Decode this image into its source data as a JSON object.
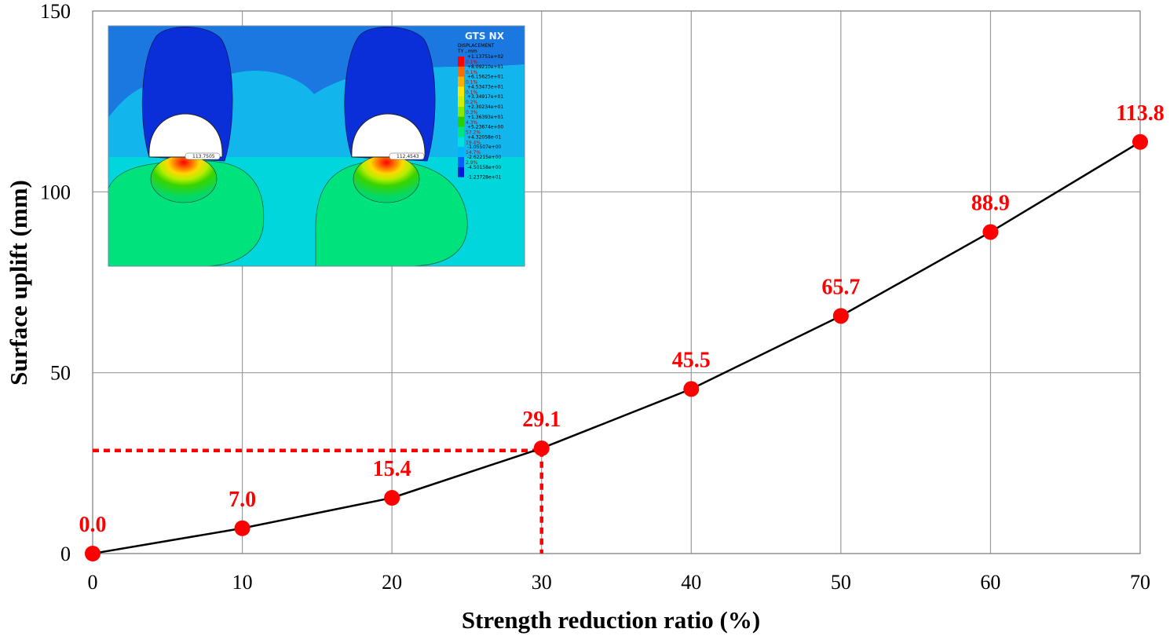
{
  "chart_data": {
    "type": "line",
    "title": "",
    "xlabel": "Strength reduction ratio (%)",
    "ylabel": "Surface  uplift (mm)",
    "x": [
      0,
      10,
      20,
      30,
      40,
      50,
      60,
      70
    ],
    "series": [
      {
        "name": "Surface uplift",
        "values": [
          0.0,
          7.0,
          15.4,
          29.1,
          45.5,
          65.7,
          88.9,
          113.8
        ]
      }
    ],
    "data_labels": [
      "0.0",
      "7.0",
      "15.4",
      "29.1",
      "45.5",
      "65.7",
      "88.9",
      "113.8"
    ],
    "xlim": [
      0,
      70
    ],
    "ylim": [
      0,
      150
    ],
    "xticks": [
      "0",
      "10",
      "20",
      "30",
      "40",
      "50",
      "60",
      "70"
    ],
    "yticks": [
      "0",
      "50",
      "100",
      "150"
    ],
    "grid": true,
    "reference_point": {
      "x": 30,
      "y": 28.5
    },
    "colors": {
      "line": "#000000",
      "marker": "#ff0000",
      "label": "#ff0000",
      "reference": "#ff0000",
      "grid": "#999999"
    }
  },
  "inset": {
    "brand": "GTS NX",
    "legend_title": "DISPLACEMENT",
    "legend_unit": "TY , mm",
    "legend_values": [
      "+1.13751e+02",
      "+8.09210e+01",
      "+6.15625e+01",
      "+4.53473e+01",
      "+3.34917e+01",
      "+2.30234e+01",
      "+1.36393e+01",
      "+5.23674e+00",
      "+4.32058e-01",
      "-1.05507e+00",
      "-2.62215e+00",
      "-4.50158e+00",
      "-1.23728e+01"
    ],
    "legend_percents": [
      "0.1%",
      "0.1%",
      "0.1%",
      "0.1%",
      "0.2%",
      "0.3%",
      "4.3%",
      "57.2%",
      "19.4%",
      "14.7%",
      "2.9%"
    ],
    "legend_colors": [
      "#ff0000",
      "#ff6a00",
      "#ffae00",
      "#ffe600",
      "#d0f000",
      "#8ce800",
      "#28d000",
      "#00e67a",
      "#00e0e0",
      "#00b4ff",
      "#0060ff",
      "#0018d8"
    ],
    "tags": [
      "113.7505",
      "112.4543"
    ]
  }
}
